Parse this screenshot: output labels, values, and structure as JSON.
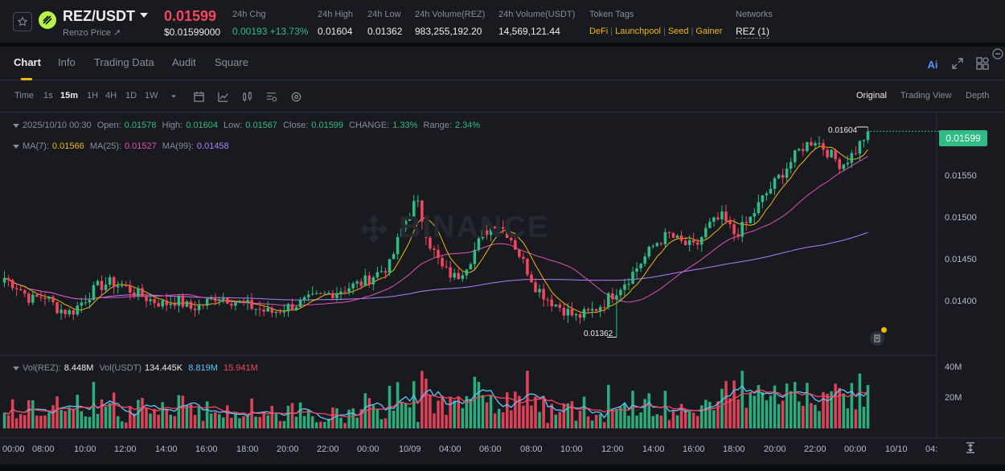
{
  "ticker": {
    "pair": "REZ/USDT",
    "price_source": "Renzo Price ↗",
    "last_price": "0.01599",
    "last_price_usd": "$0.01599000",
    "stats": [
      {
        "label": "24h Chg",
        "value": "0.00193 +13.73%"
      },
      {
        "label": "24h High",
        "value": "0.01604"
      },
      {
        "label": "24h Low",
        "value": "0.01362"
      },
      {
        "label": "24h Volume(REZ)",
        "value": "983,255,192.20"
      },
      {
        "label": "24h Volume(USDT)",
        "value": "14,569,121.44"
      }
    ],
    "token_tags_label": "Token Tags",
    "token_tags": [
      "DeFi",
      "Launchpool",
      "Seed",
      "Gainer"
    ],
    "networks_label": "Networks",
    "networks_value": "REZ (1)"
  },
  "panel": {
    "tabs": [
      "Chart",
      "Info",
      "Trading Data",
      "Audit",
      "Square"
    ],
    "active_tab": "Chart",
    "ai_label": "Ai"
  },
  "toolbar": {
    "time_label": "Time",
    "timeframes": [
      "1s",
      "15m",
      "1H",
      "4H",
      "1D",
      "1W"
    ],
    "active_timeframe": "15m",
    "views": [
      "Original",
      "Trading View",
      "Depth"
    ],
    "active_view": "Original"
  },
  "legend": {
    "datetime": "2025/10/10 00:30",
    "open_label": "Open:",
    "open": "0.01578",
    "high_label": "High:",
    "high": "0.01604",
    "low_label": "Low:",
    "low": "0.01567",
    "close_label": "Close:",
    "close": "0.01599",
    "change_label": "CHANGE:",
    "change": "1.33%",
    "range_label": "Range:",
    "range": "2.34%",
    "ma7_label": "MA(7):",
    "ma7": "0.01566",
    "ma25_label": "MA(25):",
    "ma25": "0.01527",
    "ma99_label": "MA(99):",
    "ma99": "0.01458",
    "vol_rez_label": "Vol(REZ):",
    "vol_rez": "8.448M",
    "vol_usdt_label": "Vol(USDT)",
    "vol_usdt": "134.445K",
    "vol_ma1": "8.819M",
    "vol_ma2": "15.941M"
  },
  "colors": {
    "up": "#2ebd85",
    "down": "#f6465d",
    "ma7": "#f0b90b",
    "ma25": "#e250b5",
    "ma99": "#b47cff",
    "vol_ma1": "#5ec6ff",
    "vol_ma2": "#f6465d"
  },
  "chart_data": {
    "type": "candlestick",
    "price_axis": [
      "0.01550",
      "0.01500",
      "0.01450",
      "0.01400"
    ],
    "volume_axis": [
      "40M",
      "20M"
    ],
    "current_price_tag": "0.01599",
    "high_marker": "0.01604",
    "low_marker": "0.01362",
    "time_axis": [
      "00:00",
      "08:00",
      "10:00",
      "12:00",
      "14:00",
      "16:00",
      "18:00",
      "20:00",
      "22:00",
      "00:00",
      "10/09",
      "04:00",
      "06:00",
      "08:00",
      "10:00",
      "12:00",
      "14:00",
      "16:00",
      "18:00",
      "20:00",
      "22:00",
      "00:00",
      "10/10",
      "04:"
    ],
    "ylim": [
      0.01343,
      0.01616
    ],
    "vol_max_millions": 45,
    "series_close_anchors": [
      [
        0.0143,
        0.0142,
        0.01405,
        0.0141,
        0.01395,
        0.0139,
        0.01405,
        0.0142,
        0.01425,
        0.0142,
        0.01412,
        0.01405,
        0.014,
        0.01405,
        0.01395,
        0.014,
        0.0141,
        0.01405,
        0.014,
        0.01395,
        0.0139,
        0.01395,
        0.014,
        0.01405,
        0.0141,
        0.01415,
        0.0142,
        0.01425,
        0.01435,
        0.01445,
        0.0149,
        0.0152,
        0.0147,
        0.0144,
        0.0143,
        0.0145,
        0.0148,
        0.01495,
        0.0148,
        0.0145,
        0.0142,
        0.01405,
        0.01395,
        0.01385,
        0.0139,
        0.014,
        0.01415,
        0.0143,
        0.0145,
        0.0147,
        0.0148,
        0.0147,
        0.01465,
        0.0149,
        0.015,
        0.0148,
        0.01495,
        0.0152,
        0.0154,
        0.0156,
        0.0158,
        0.0159,
        0.01575,
        0.0156,
        0.01575,
        0.01599
      ]
    ]
  }
}
